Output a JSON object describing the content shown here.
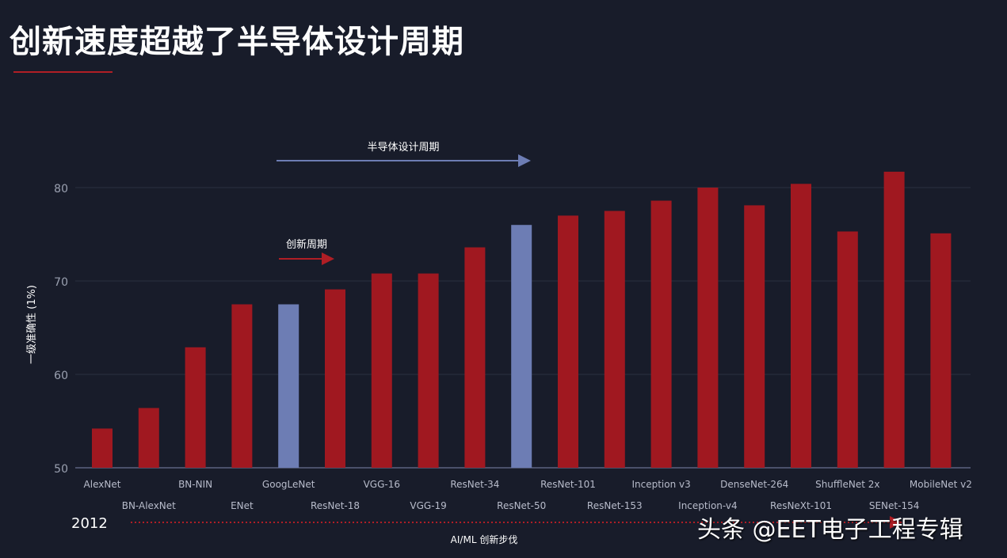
{
  "title": "创新速度超越了半导体设计周期",
  "annotations": {
    "semiconductor_cycle": "半导体设计周期",
    "innovation_cycle": "创新周期",
    "start_year": "2012",
    "x_caption": "AI/ML 创新步伐"
  },
  "watermark": "头条 @EET电子工程专辑",
  "colors": {
    "background": "#181c2a",
    "red_bar": "#a01820",
    "blue_bar": "#6d7db4",
    "grid": "#2a2f40"
  },
  "chart_data": {
    "type": "bar",
    "ylabel": "一级准确性 (1%)",
    "ylim": [
      50,
      82
    ],
    "yticks": [
      50,
      60,
      70,
      80
    ],
    "grid": true,
    "categories": [
      "AlexNet",
      "BN-AlexNet",
      "BN-NIN",
      "ENet",
      "GoogLeNet",
      "ResNet-18",
      "VGG-16",
      "VGG-19",
      "ResNet-34",
      "ResNet-50",
      "ResNet-101",
      "ResNet-153",
      "Inception v3",
      "Inception-v4",
      "DenseNet-264",
      "ResNeXt-101",
      "ShuffleNet 2x",
      "SENet-154",
      "MobileNet v2"
    ],
    "values": [
      54.2,
      56.4,
      62.9,
      67.5,
      67.5,
      69.1,
      70.8,
      70.8,
      73.6,
      76.0,
      77.0,
      77.5,
      78.6,
      80.0,
      78.1,
      80.4,
      75.3,
      81.7,
      75.1
    ],
    "highlighted": [
      "GoogLeNet",
      "ResNet-50"
    ]
  }
}
